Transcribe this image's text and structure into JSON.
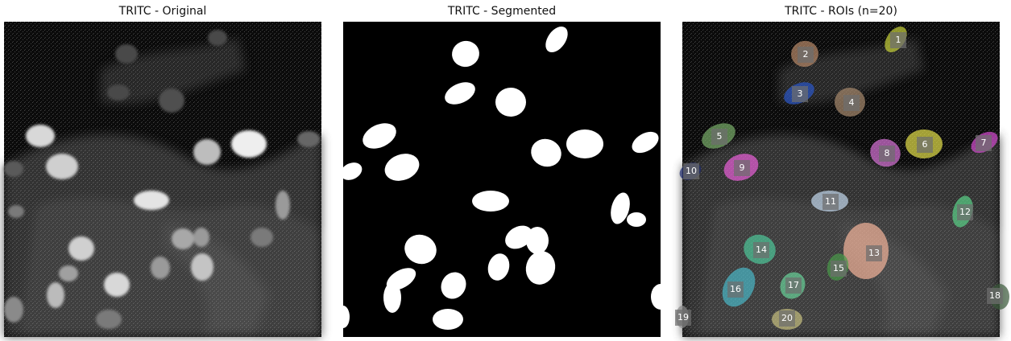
{
  "panels": {
    "original": {
      "title": "TRITC - Original"
    },
    "segmented": {
      "title": "TRITC - Segmented"
    },
    "rois": {
      "title": "TRITC - ROIs (n=20)"
    }
  },
  "rois": [
    {
      "label": "1",
      "color": "#c8d23a"
    },
    {
      "label": "2",
      "color": "#b98a6a"
    },
    {
      "label": "3",
      "color": "#2a55c8"
    },
    {
      "label": "4",
      "color": "#a88a6e"
    },
    {
      "label": "5",
      "color": "#79ae6a"
    },
    {
      "label": "6",
      "color": "#e4e04a"
    },
    {
      "label": "7",
      "color": "#d44ad0"
    },
    {
      "label": "8",
      "color": "#d873d8"
    },
    {
      "label": "9",
      "color": "#ea5fd8"
    },
    {
      "label": "10",
      "color": "#1d2a6e"
    },
    {
      "label": "11",
      "color": "#c3d8ee"
    },
    {
      "label": "12",
      "color": "#5ad287"
    },
    {
      "label": "13",
      "color": "#f3b49a"
    },
    {
      "label": "14",
      "color": "#4fc89a"
    },
    {
      "label": "15",
      "color": "#4a9a4a"
    },
    {
      "label": "16",
      "color": "#4ab8c8"
    },
    {
      "label": "17",
      "color": "#6ad39a"
    },
    {
      "label": "18",
      "color": "#3a5a3a"
    },
    {
      "label": "19",
      "color": "#8a8a8a"
    },
    {
      "label": "20",
      "color": "#c8c080"
    }
  ]
}
